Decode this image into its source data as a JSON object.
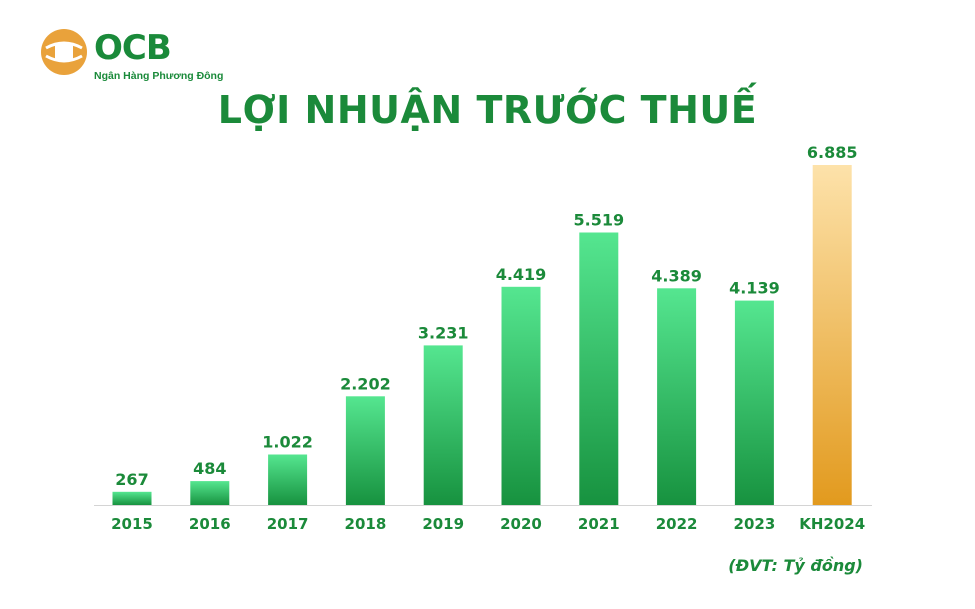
{
  "logo": {
    "brand": "OCB",
    "tagline": "Ngân Hàng Phương Đông",
    "icon": "ocb-logo-icon"
  },
  "colors": {
    "green": "#1b8a3a",
    "bar_green_top": "#55e690",
    "bar_green_bottom": "#17923f",
    "bar_orange_top": "#fde2aa",
    "bar_orange_bottom": "#e29a1e",
    "logo_orange": "#e9a23b"
  },
  "chart_data": {
    "type": "bar",
    "title": "LỢI NHUẬN TRƯỚC THUẾ",
    "categories": [
      "2015",
      "2016",
      "2017",
      "2018",
      "2019",
      "2020",
      "2021",
      "2022",
      "2023",
      "KH2024"
    ],
    "values": [
      267,
      484,
      1022,
      2202,
      3231,
      4419,
      5519,
      4389,
      4139,
      6885
    ],
    "value_labels": [
      "267",
      "484",
      "1.022",
      "2.202",
      "3.231",
      "4.419",
      "5.519",
      "4.389",
      "4.139",
      "6.885"
    ],
    "highlight_category": "KH2024",
    "unit_note": "(ĐVT: Tỷ đồng)",
    "xlabel": "",
    "ylabel": "",
    "grid": false,
    "legend": "none"
  }
}
